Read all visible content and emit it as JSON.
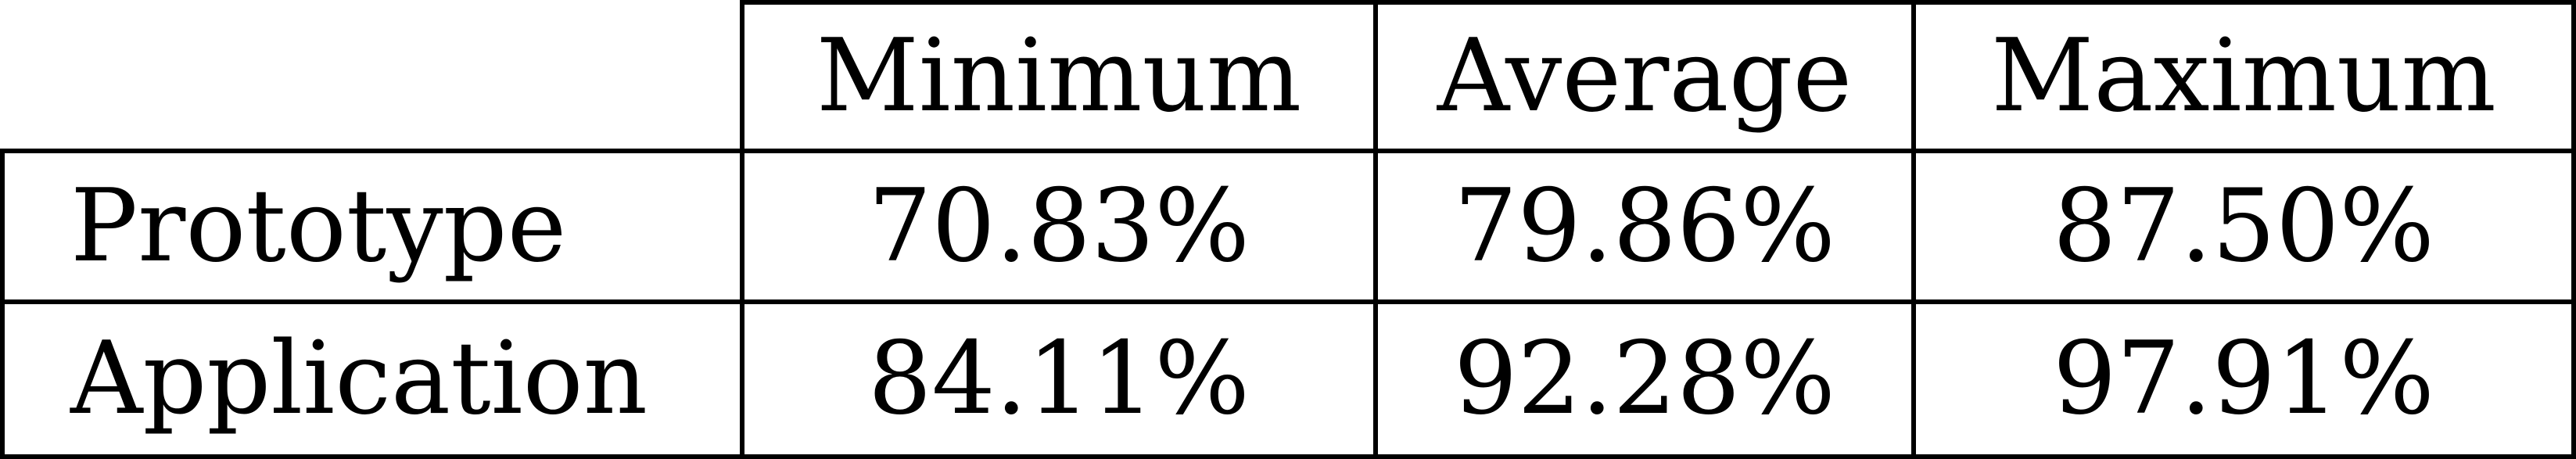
{
  "table": {
    "headers": [
      "",
      "Minimum",
      "Average",
      "Maximum"
    ],
    "rows": [
      {
        "label": "Prototype",
        "values": [
          "70.83%",
          "79.86%",
          "87.50%"
        ]
      },
      {
        "label": "Application",
        "values": [
          "84.11%",
          "92.28%",
          "97.91%"
        ]
      }
    ]
  }
}
